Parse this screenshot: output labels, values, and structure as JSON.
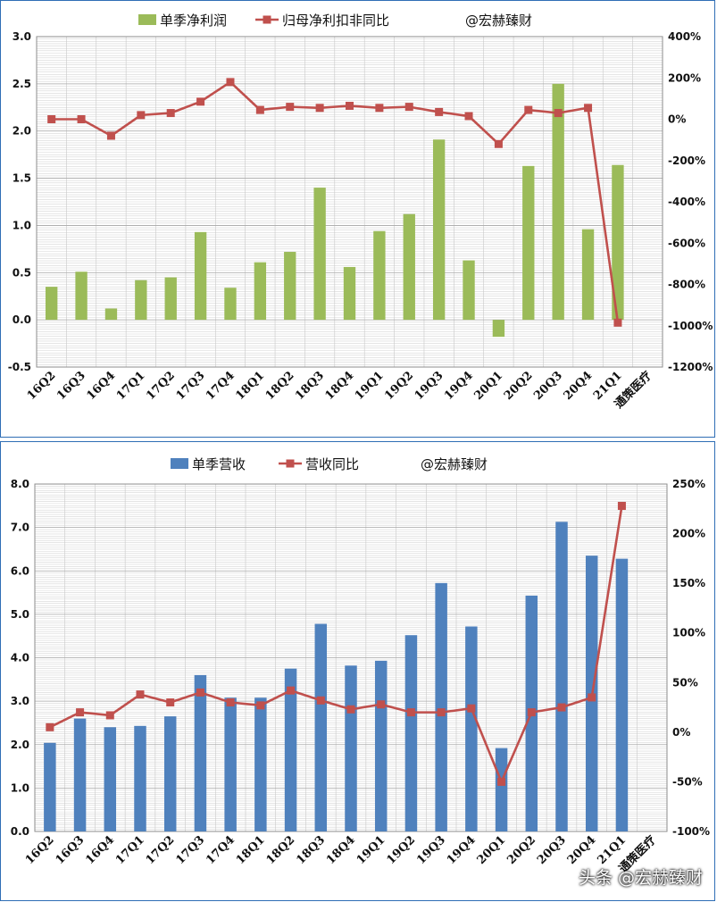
{
  "chart_data": [
    {
      "type": "bar",
      "title": "",
      "categories": [
        "16Q2",
        "16Q3",
        "16Q4",
        "17Q1",
        "17Q2",
        "17Q3",
        "17Q4",
        "18Q1",
        "18Q2",
        "18Q3",
        "18Q4",
        "19Q1",
        "19Q2",
        "19Q3",
        "19Q4",
        "20Q1",
        "20Q2",
        "20Q3",
        "20Q4",
        "21Q1"
      ],
      "extra_category_label": "通策医疗",
      "legend": [
        "单季净利润",
        "归母净利扣非同比",
        "@宏赫臻财"
      ],
      "legend_position": "top",
      "grid": true,
      "series": [
        {
          "name": "单季净利润",
          "type": "bar",
          "axis": "left",
          "color": "#9bbb59",
          "values": [
            0.35,
            0.51,
            0.12,
            0.42,
            0.45,
            0.93,
            0.34,
            0.61,
            0.72,
            1.4,
            0.56,
            0.94,
            1.12,
            1.91,
            0.63,
            -0.18,
            1.63,
            2.5,
            0.96,
            1.64
          ]
        },
        {
          "name": "归母净利扣非同比",
          "type": "line",
          "axis": "right",
          "color": "#c0504d",
          "values": [
            0,
            0,
            -80,
            20,
            30,
            85,
            180,
            45,
            60,
            55,
            65,
            55,
            60,
            35,
            15,
            -120,
            45,
            30,
            55,
            -985
          ]
        }
      ],
      "y_left": {
        "min": -0.5,
        "max": 3.0,
        "step": 0.5,
        "ticks": [
          "-0.5",
          "0.0",
          "0.5",
          "1.0",
          "1.5",
          "2.0",
          "2.5",
          "3.0"
        ]
      },
      "y_right": {
        "min": -1200,
        "max": 400,
        "step": 200,
        "ticks": [
          "-1200%",
          "-1000%",
          "-800%",
          "-600%",
          "-400%",
          "-200%",
          "0%",
          "200%",
          "400%"
        ]
      }
    },
    {
      "type": "bar",
      "title": "",
      "categories": [
        "16Q2",
        "16Q3",
        "16Q4",
        "17Q1",
        "17Q2",
        "17Q3",
        "17Q4",
        "18Q1",
        "18Q2",
        "18Q3",
        "18Q4",
        "19Q1",
        "19Q2",
        "19Q3",
        "19Q4",
        "20Q1",
        "20Q2",
        "20Q3",
        "20Q4",
        "21Q1"
      ],
      "extra_category_label": "通策医疗",
      "legend": [
        "单季营收",
        "营收同比",
        "@宏赫臻财"
      ],
      "legend_position": "top",
      "grid": true,
      "series": [
        {
          "name": "单季营收",
          "type": "bar",
          "axis": "left",
          "color": "#4f81bd",
          "values": [
            2.04,
            2.6,
            2.4,
            2.43,
            2.65,
            3.6,
            3.08,
            3.08,
            3.75,
            4.78,
            3.82,
            3.93,
            4.52,
            5.72,
            4.72,
            1.92,
            5.43,
            7.13,
            6.35,
            6.28
          ]
        },
        {
          "name": "营收同比",
          "type": "line",
          "axis": "right",
          "color": "#c0504d",
          "values": [
            5,
            20,
            17,
            38,
            30,
            40,
            30,
            27,
            42,
            32,
            23,
            28,
            20,
            20,
            24,
            -50,
            20,
            25,
            35,
            228
          ]
        }
      ],
      "y_left": {
        "min": 0,
        "max": 8,
        "step": 1,
        "ticks": [
          "0.0",
          "1.0",
          "2.0",
          "3.0",
          "4.0",
          "5.0",
          "6.0",
          "7.0",
          "8.0"
        ]
      },
      "y_right": {
        "min": -100,
        "max": 250,
        "step": 50,
        "ticks": [
          "-100%",
          "-50%",
          "0%",
          "50%",
          "100%",
          "150%",
          "200%",
          "250%"
        ]
      }
    }
  ],
  "watermark": "头条 @宏赫臻财"
}
